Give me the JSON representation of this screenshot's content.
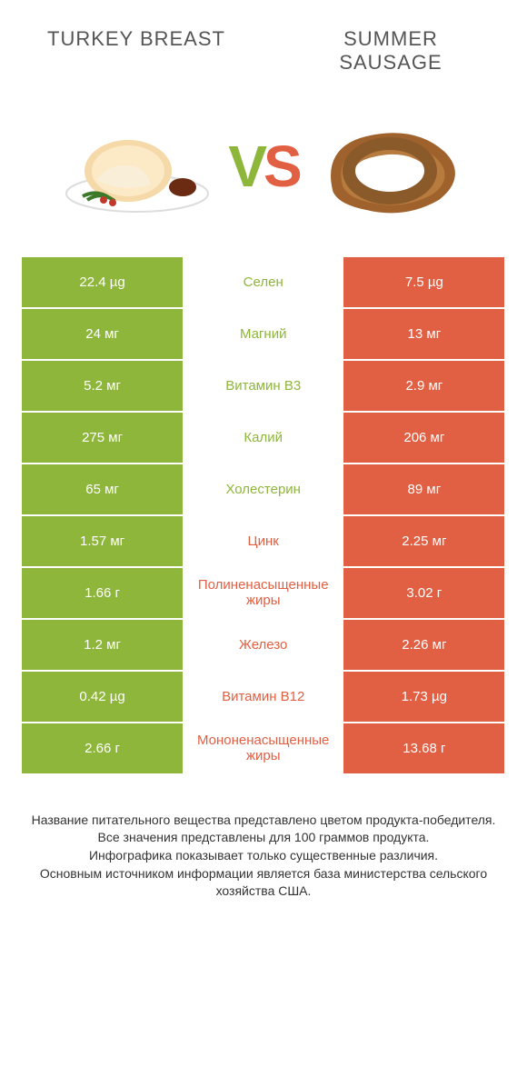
{
  "header": {
    "left_title": "TURKEY BREAST",
    "right_title": "SUMMER SAUSAGE",
    "vs_v": "V",
    "vs_s": "S"
  },
  "colors": {
    "left": "#8eb63b",
    "right": "#e15f42",
    "bg": "#ffffff",
    "text": "#333333"
  },
  "rows": [
    {
      "left": "22.4 µg",
      "name": "Селен",
      "right": "7.5 µg",
      "winner": "left"
    },
    {
      "left": "24 мг",
      "name": "Магний",
      "right": "13 мг",
      "winner": "left"
    },
    {
      "left": "5.2 мг",
      "name": "Витамин B3",
      "right": "2.9 мг",
      "winner": "left"
    },
    {
      "left": "275 мг",
      "name": "Калий",
      "right": "206 мг",
      "winner": "left"
    },
    {
      "left": "65 мг",
      "name": "Холестерин",
      "right": "89 мг",
      "winner": "left"
    },
    {
      "left": "1.57 мг",
      "name": "Цинк",
      "right": "2.25 мг",
      "winner": "right"
    },
    {
      "left": "1.66 г",
      "name": "Полиненасыщенные жиры",
      "right": "3.02 г",
      "winner": "right"
    },
    {
      "left": "1.2 мг",
      "name": "Железо",
      "right": "2.26 мг",
      "winner": "right"
    },
    {
      "left": "0.42 µg",
      "name": "Витамин B12",
      "right": "1.73 µg",
      "winner": "right"
    },
    {
      "left": "2.66 г",
      "name": "Мононенасыщенные жиры",
      "right": "13.68 г",
      "winner": "right"
    }
  ],
  "footnote": {
    "l1": "Название питательного вещества представлено цветом продукта-победителя.",
    "l2": "Все значения представлены для 100 граммов продукта.",
    "l3": "Инфографика показывает только существенные различия.",
    "l4": "Основным источником информации является база министерства сельского хозяйства США."
  }
}
